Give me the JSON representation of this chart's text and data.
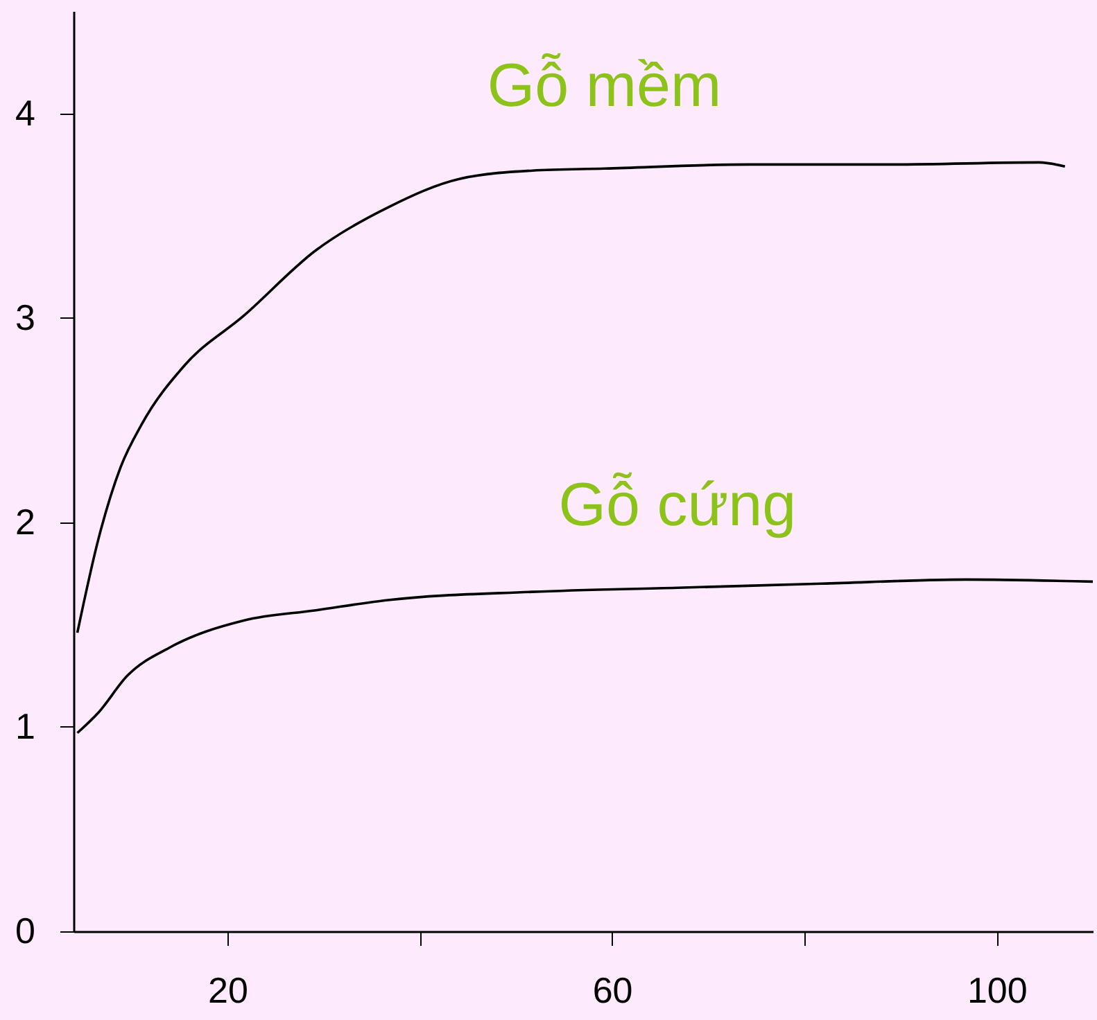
{
  "chart_data": {
    "type": "line",
    "xlim": [
      4,
      110
    ],
    "ylim": [
      0,
      4.5
    ],
    "xticks": [
      20,
      {
        "value": 40,
        "label": null
      },
      60,
      {
        "value": 80,
        "label": null
      },
      100
    ],
    "yticks": [
      0,
      1,
      2,
      3,
      4
    ],
    "grid": false,
    "legend": false,
    "marker": "none",
    "line_style": "solid",
    "series": [
      {
        "name": "Gỗ mềm",
        "color": "#000000",
        "x": [
          4.4,
          6.6,
          8.9,
          11.1,
          15.6,
          21.7,
          29.2,
          36.7,
          44.2,
          51.7,
          59.2,
          74.3,
          89.3,
          104.4,
          107.1
        ],
        "values": [
          1.46,
          1.92,
          2.27,
          2.48,
          2.77,
          3.01,
          3.33,
          3.54,
          3.68,
          3.72,
          3.73,
          3.75,
          3.75,
          3.76,
          3.74
        ]
      },
      {
        "name": "Gỗ cứng",
        "color": "#000000",
        "x": [
          4.4,
          6.6,
          9.6,
          14.1,
          21.7,
          29.2,
          36.7,
          51.7,
          66.8,
          81.8,
          96.8,
          110
        ],
        "values": [
          0.97,
          1.07,
          1.25,
          1.39,
          1.52,
          1.57,
          1.62,
          1.66,
          1.68,
          1.7,
          1.72,
          1.71
        ]
      }
    ]
  }
}
